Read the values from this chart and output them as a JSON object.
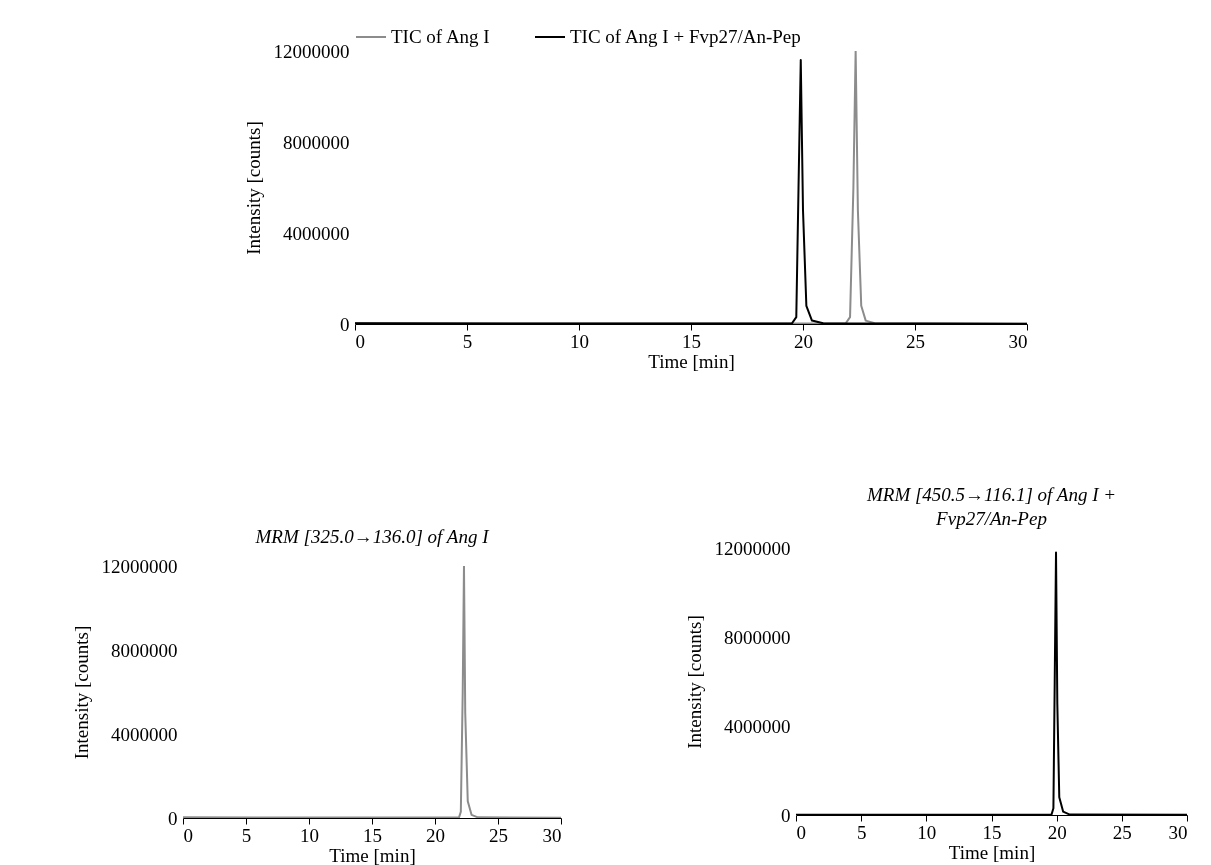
{
  "chart_data": [
    {
      "type": "line",
      "xlabel": "Time [min]",
      "ylabel": "Intensity [counts]",
      "xlim": [
        0,
        30
      ],
      "xticks": [
        0,
        5,
        10,
        15,
        20,
        25,
        30
      ],
      "ylim": [
        0,
        12000000
      ],
      "yticks": [
        0,
        4000000,
        8000000,
        12000000
      ],
      "grid": false,
      "legend": "top",
      "series": [
        {
          "name": "TIC of Ang I",
          "color": "#8c8c8c",
          "x": [
            0,
            10,
            21.9,
            22.1,
            22.25,
            22.35,
            22.45,
            22.6,
            22.8,
            23.2,
            30
          ],
          "values": [
            30000,
            20000,
            20000,
            300000,
            6000000,
            12000000,
            5000000,
            800000,
            150000,
            30000,
            10000
          ]
        },
        {
          "name": "TIC of Ang I + Fvp27/An-Pep",
          "color": "#000000",
          "x": [
            0,
            10,
            19.5,
            19.7,
            19.8,
            19.9,
            20,
            20.15,
            20.4,
            20.9,
            30
          ],
          "values": [
            30000,
            20000,
            20000,
            300000,
            6000000,
            11600000,
            5000000,
            800000,
            150000,
            30000,
            10000
          ]
        }
      ]
    },
    {
      "type": "line",
      "title": "MRM [325.0→136.0] of Ang I",
      "xlabel": "Time [min]",
      "ylabel": "Intensity [counts]",
      "xlim": [
        0,
        30
      ],
      "xticks": [
        0,
        5,
        10,
        15,
        20,
        25,
        30
      ],
      "ylim": [
        0,
        12000000
      ],
      "yticks": [
        0,
        4000000,
        8000000,
        12000000
      ],
      "grid": false,
      "series": [
        {
          "color": "#8c8c8c",
          "x": [
            0,
            10,
            21.9,
            22.05,
            22.2,
            22.3,
            22.4,
            22.6,
            22.9,
            23.4,
            30
          ],
          "values": [
            30000,
            20000,
            20000,
            300000,
            6000000,
            12000000,
            5000000,
            800000,
            150000,
            30000,
            10000
          ]
        }
      ]
    },
    {
      "type": "line",
      "title": "MRM  [450.5→116.1] of Ang I + Fvp27/An-Pep",
      "xlabel": "Time [min]",
      "ylabel": "Intensity [counts]",
      "xlim": [
        0,
        30
      ],
      "xticks": [
        0,
        5,
        10,
        15,
        20,
        25,
        30
      ],
      "ylim": [
        0,
        12000000
      ],
      "yticks": [
        0,
        4000000,
        8000000,
        12000000
      ],
      "grid": false,
      "series": [
        {
          "color": "#000000",
          "x": [
            0,
            10,
            19.6,
            19.75,
            19.85,
            19.95,
            20.05,
            20.2,
            20.5,
            21,
            30
          ],
          "values": [
            10000,
            10000,
            10000,
            300000,
            6000000,
            11800000,
            5000000,
            800000,
            150000,
            20000,
            10000
          ]
        }
      ]
    }
  ]
}
